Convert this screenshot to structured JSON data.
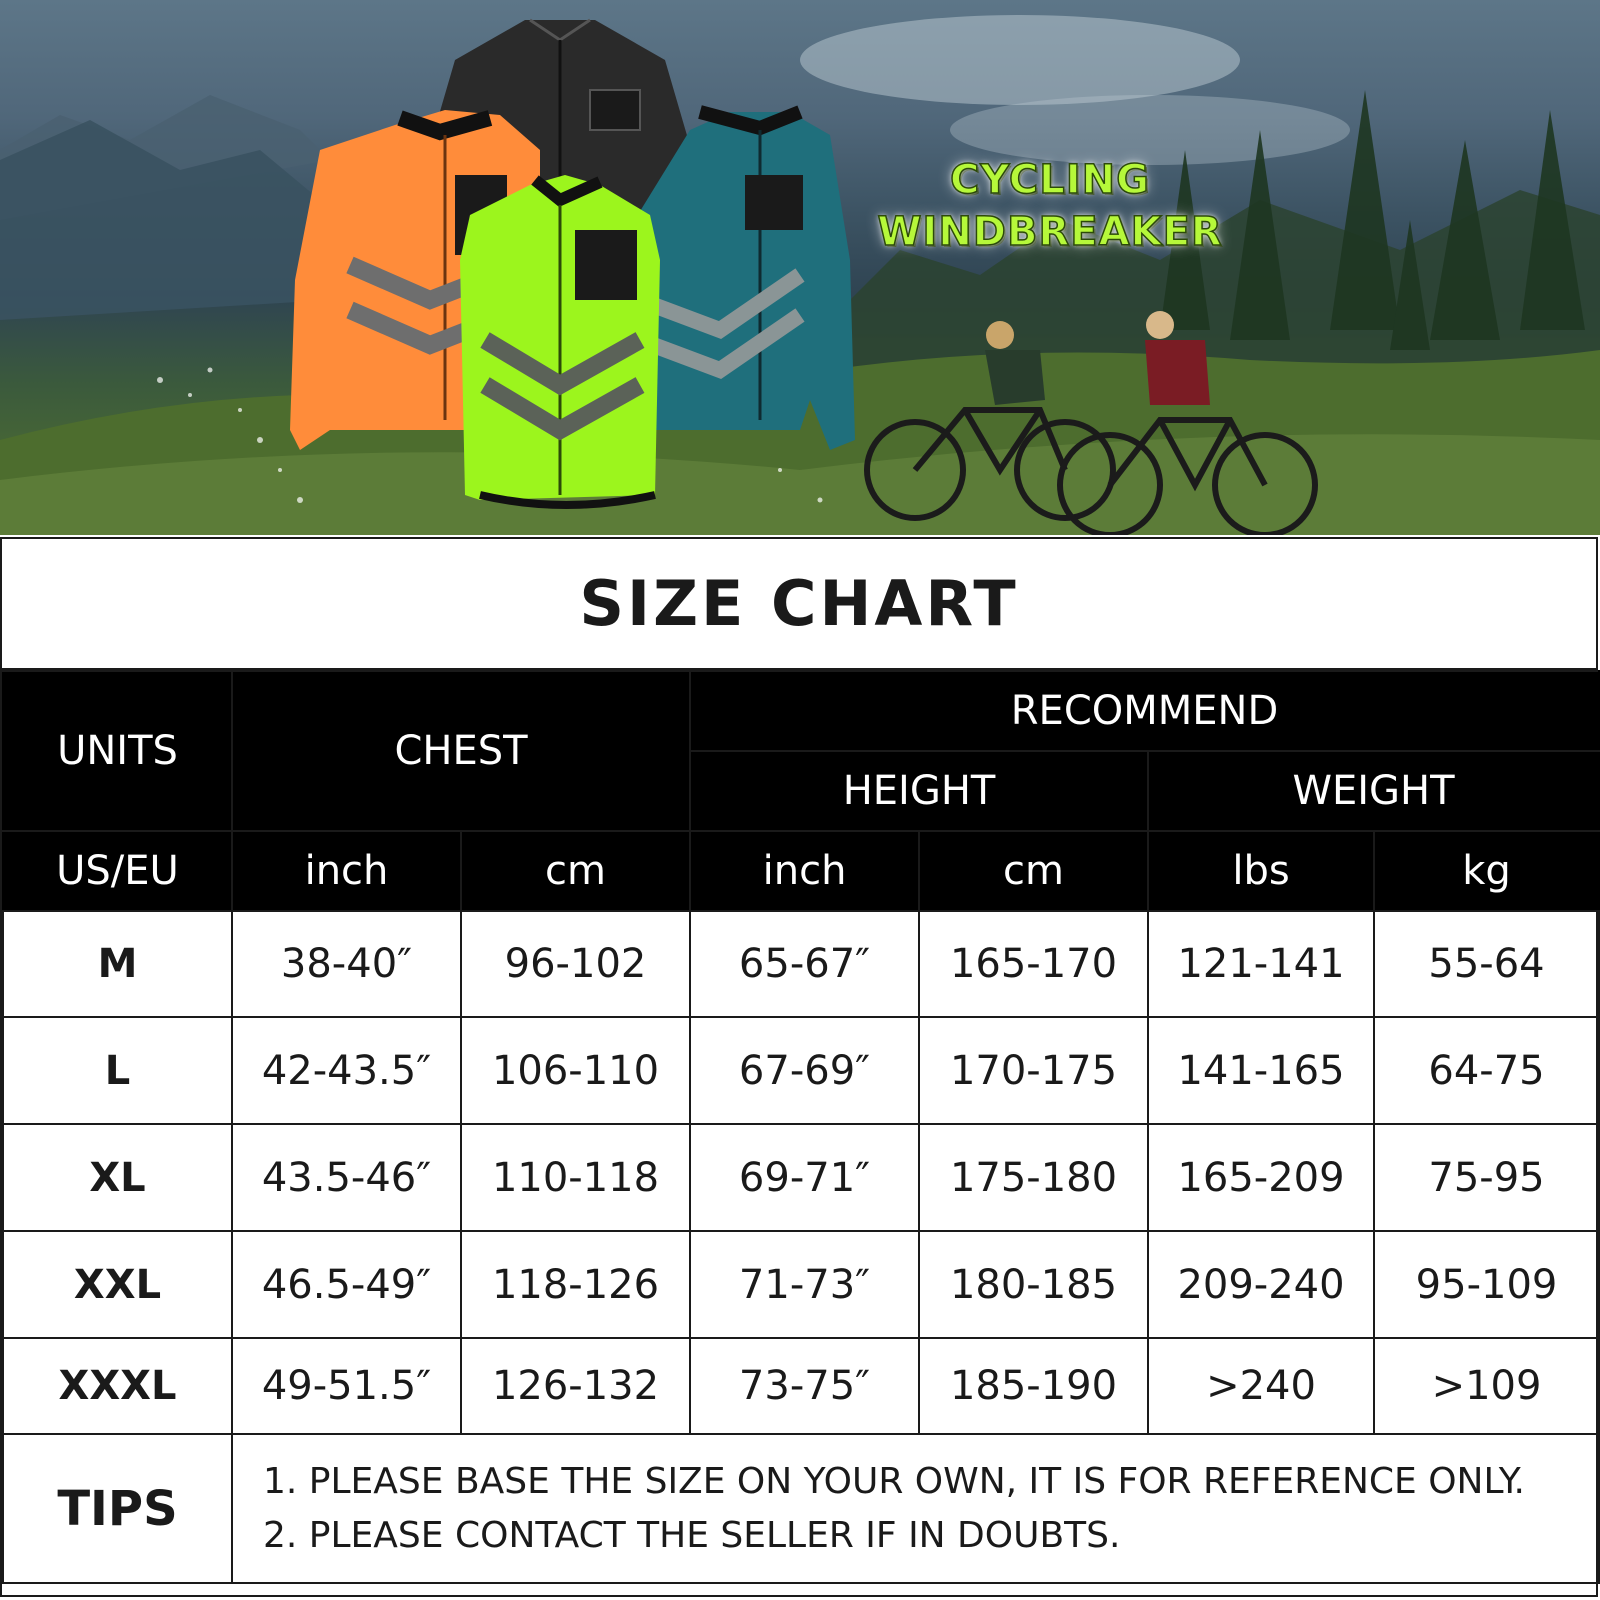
{
  "banner": {
    "title_line1": "CYCLING",
    "title_line2": "WINDBREAKER",
    "jackets": [
      {
        "color_name": "black",
        "color": "#2a2a2a"
      },
      {
        "color_name": "orange",
        "color": "#ff8c3a"
      },
      {
        "color_name": "teal",
        "color": "#1f6f7c"
      },
      {
        "color_name": "fluorescent green",
        "color": "#9cf51d"
      }
    ]
  },
  "chart": {
    "title": "SIZE CHART",
    "header": {
      "units": "UNITS",
      "chest": "CHEST",
      "recommend": "RECOMMEND",
      "height": "HEIGHT",
      "weight": "WEIGHT"
    },
    "unit_row": [
      "US/EU",
      "inch",
      "cm",
      "inch",
      "cm",
      "lbs",
      "kg"
    ],
    "rows": [
      {
        "size": "M",
        "chest_in": "38-40″",
        "chest_cm": "96-102",
        "height_in": "65-67″",
        "height_cm": "165-170",
        "weight_lbs": "121-141",
        "weight_kg": "55-64"
      },
      {
        "size": "L",
        "chest_in": "42-43.5″",
        "chest_cm": "106-110",
        "height_in": "67-69″",
        "height_cm": "170-175",
        "weight_lbs": "141-165",
        "weight_kg": "64-75"
      },
      {
        "size": "XL",
        "chest_in": "43.5-46″",
        "chest_cm": "110-118",
        "height_in": "69-71″",
        "height_cm": "175-180",
        "weight_lbs": "165-209",
        "weight_kg": "75-95"
      },
      {
        "size": "XXL",
        "chest_in": "46.5-49″",
        "chest_cm": "118-126",
        "height_in": "71-73″",
        "height_cm": "180-185",
        "weight_lbs": "209-240",
        "weight_kg": "95-109"
      },
      {
        "size": "XXXL",
        "chest_in": "49-51.5″",
        "chest_cm": "126-132",
        "height_in": "73-75″",
        "height_cm": "185-190",
        "weight_lbs": ">240",
        "weight_kg": ">109"
      }
    ],
    "tips": {
      "label": "TIPS",
      "lines": [
        "1. PLEASE BASE THE SIZE ON YOUR OWN, IT IS FOR REFERENCE ONLY.",
        "2. PLEASE CONTACT THE SELLER IF IN DOUBTS."
      ]
    }
  }
}
